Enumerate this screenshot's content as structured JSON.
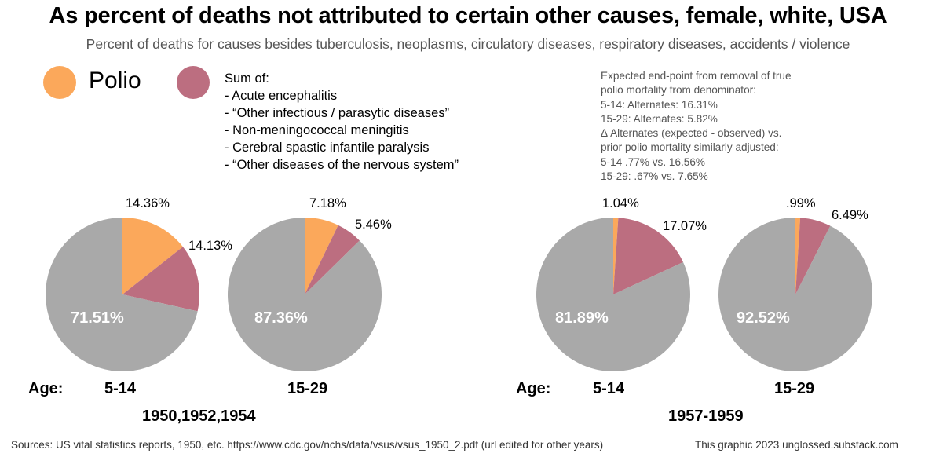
{
  "title": "As percent of deaths not attributed to certain other causes, female, white, USA",
  "subtitle": "Percent of deaths for causes besides tuberculosis, neoplasms, circulatory diseases, respiratory diseases, accidents / violence",
  "colors": {
    "polio": "#FBA85B",
    "sum": "#BC6E80",
    "other": "#A9A9A9"
  },
  "legend": {
    "polio_label": "Polio",
    "sum_lines": [
      "Sum of:",
      "- Acute encephalitis",
      "- “Other infectious / parasytic diseases”",
      "- Non-meningococcal meningitis",
      "- Cerebral spastic infantile paralysis",
      "- “Other diseases of the nervous system”"
    ]
  },
  "note_lines": [
    "Expected end-point from removal of true",
    "polio mortality from denominator:",
    "5-14: Alternates: 16.31%",
    "15-29: Alternates: 5.82%",
    "Δ Alternates (expected - observed) vs.",
    "prior polio mortality similarly adjusted:",
    "5-14 .77% vs. 16.56%",
    "15-29: .67% vs. 7.65%"
  ],
  "labels": {
    "age_label": "Age:",
    "age_1": "5-14",
    "age_2": "15-29",
    "period_1": "1950,1952,1954",
    "period_2": "1957-1959"
  },
  "footer": {
    "sources": "Sources: US vital statistics reports, 1950, etc. https://www.cdc.gov/nchs/data/vsus/vsus_1950_2.pdf (url edited for other years)",
    "credit": "This graphic 2023 unglossed.substack.com"
  },
  "chart_data": [
    {
      "type": "pie",
      "title": "",
      "period": "1950,1952,1954",
      "age": "5-14",
      "slices": [
        {
          "name": "Polio",
          "value": 14.36,
          "label": "14.36%"
        },
        {
          "name": "Sum of alternates",
          "value": 14.13,
          "label": "14.13%"
        },
        {
          "name": "Other",
          "value": 71.51,
          "label": "71.51%"
        }
      ]
    },
    {
      "type": "pie",
      "title": "",
      "period": "1950,1952,1954",
      "age": "15-29",
      "slices": [
        {
          "name": "Polio",
          "value": 7.18,
          "label": "7.18%"
        },
        {
          "name": "Sum of alternates",
          "value": 5.46,
          "label": "5.46%"
        },
        {
          "name": "Other",
          "value": 87.36,
          "label": "87.36%"
        }
      ]
    },
    {
      "type": "pie",
      "title": "",
      "period": "1957-1959",
      "age": "5-14",
      "slices": [
        {
          "name": "Polio",
          "value": 1.04,
          "label": "1.04%"
        },
        {
          "name": "Sum of alternates",
          "value": 17.07,
          "label": "17.07%"
        },
        {
          "name": "Other",
          "value": 81.89,
          "label": "81.89%"
        }
      ]
    },
    {
      "type": "pie",
      "title": "",
      "period": "1957-1959",
      "age": "15-29",
      "slices": [
        {
          "name": "Polio",
          "value": 0.99,
          "label": ".99%"
        },
        {
          "name": "Sum of alternates",
          "value": 6.49,
          "label": "6.49%"
        },
        {
          "name": "Other",
          "value": 92.52,
          "label": "92.52%"
        }
      ]
    }
  ]
}
